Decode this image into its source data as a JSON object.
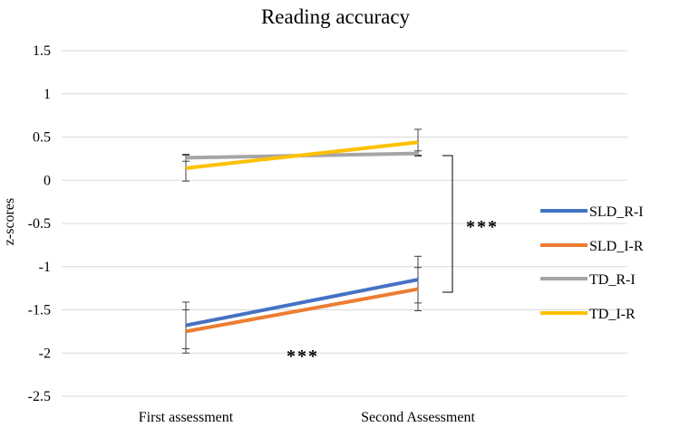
{
  "chart_data": {
    "type": "line",
    "title": "Reading accuracy",
    "xlabel": "",
    "ylabel": "z-scores",
    "categories": [
      "First assessment",
      "Second Assessment"
    ],
    "ylim": [
      -2.5,
      1.5
    ],
    "yticks": [
      "1.5",
      "1",
      "0.5",
      "0",
      "-0.5",
      "-1",
      "-1.5",
      "-2",
      "-2.5"
    ],
    "ytick_values": [
      1.5,
      1,
      0.5,
      0,
      -0.5,
      -1,
      -1.5,
      -2,
      -2.5
    ],
    "grid": true,
    "legend_position": "right",
    "series": [
      {
        "name": "SLD_R-I",
        "color": "#4472C4",
        "values": [
          -1.68,
          -1.15
        ],
        "error": [
          0.27,
          0.27
        ]
      },
      {
        "name": "SLD_I-R",
        "color": "#ED7D31",
        "values": [
          -1.75,
          -1.26
        ],
        "error": [
          0.25,
          0.25
        ]
      },
      {
        "name": "TD_R-I",
        "color": "#A5A5A5",
        "values": [
          0.26,
          0.31
        ],
        "error": [
          0.04,
          0.03
        ]
      },
      {
        "name": "TD_I-R",
        "color": "#FFC000",
        "values": [
          0.14,
          0.44
        ],
        "error": [
          0.15,
          0.15
        ]
      }
    ],
    "annotations": [
      {
        "text": "***",
        "anchor": "bracket-right"
      },
      {
        "text": "***",
        "anchor": "below-sld-lines"
      }
    ]
  }
}
